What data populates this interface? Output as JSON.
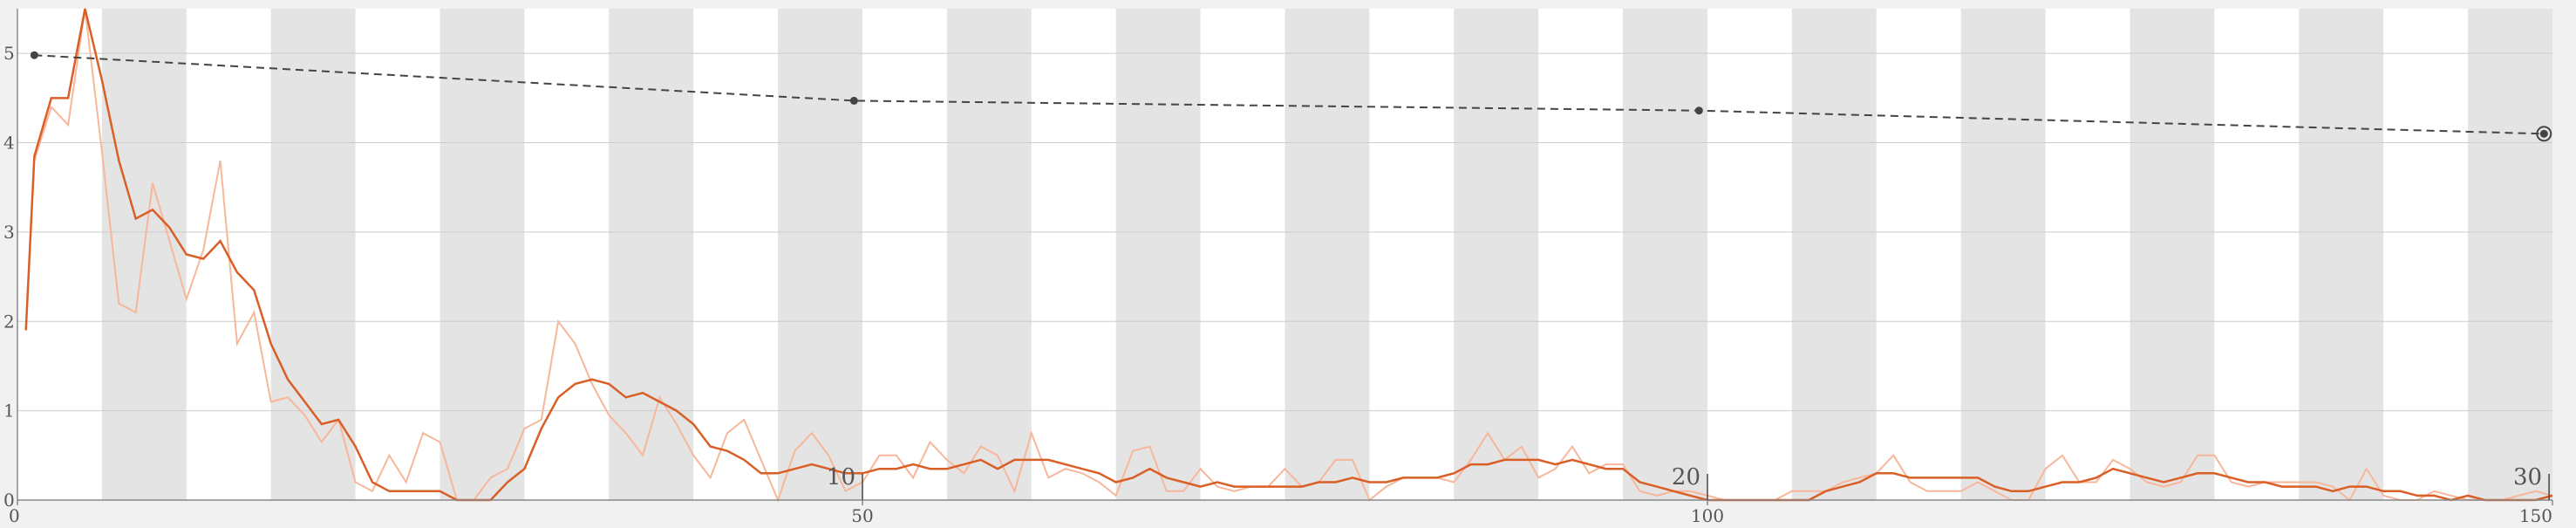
{
  "chart_data": {
    "type": "line",
    "title": "",
    "xlabel": "",
    "ylabel": "",
    "xlim": [
      0,
      150
    ],
    "ylim": [
      0,
      5.5
    ],
    "x_ticks": [
      "0",
      "50",
      "100",
      "150"
    ],
    "y_ticks": [
      "0",
      "1",
      "2",
      "3",
      "4",
      "5"
    ],
    "inner_x_labels": [
      {
        "label": "10",
        "at": 50
      },
      {
        "label": "20",
        "at": 100
      },
      {
        "label": "30",
        "at": 149.8
      }
    ],
    "band_width": 5,
    "grid": true,
    "colors": {
      "background": "#f1f1f1",
      "band_light": "#ffffff",
      "band_dark": "#e4e4e4",
      "smoothed": "#d95f27",
      "raw": "#f7b79b",
      "trend": "#444444",
      "axis": "#888888",
      "gridline": "#cccccc"
    },
    "series": [
      {
        "style": "raw",
        "x": [
          1,
          2,
          3,
          4,
          5,
          6,
          7,
          8,
          9,
          10,
          11,
          12,
          13,
          14,
          15,
          16,
          17,
          18,
          19,
          20,
          21,
          22,
          23,
          24,
          25,
          26,
          27,
          28,
          29,
          30,
          31,
          32,
          33,
          34,
          35,
          36,
          37,
          38,
          39,
          40,
          41,
          42,
          43,
          44,
          45,
          46,
          47,
          48,
          49,
          50,
          51,
          52,
          53,
          54,
          55,
          56,
          57,
          58,
          59,
          60,
          61,
          62,
          63,
          64,
          65,
          66,
          67,
          68,
          69,
          70,
          71,
          72,
          73,
          74,
          75,
          76,
          77,
          78,
          79,
          80,
          81,
          82,
          83,
          84,
          85,
          86,
          87,
          88,
          89,
          90,
          91,
          92,
          93,
          94,
          95,
          96,
          97,
          98,
          99,
          100,
          101,
          102,
          103,
          104,
          105,
          106,
          107,
          108,
          109,
          110,
          111,
          112,
          113,
          114,
          115,
          116,
          117,
          118,
          119,
          120,
          121,
          122,
          123,
          124,
          125,
          126,
          127,
          128,
          129,
          130,
          131,
          132,
          133,
          134,
          135,
          136,
          137,
          138,
          139,
          140,
          141,
          142,
          143,
          144,
          145,
          146,
          147,
          148,
          149,
          150
        ],
        "values": [
          3.8,
          4.4,
          4.2,
          5.5,
          3.9,
          2.2,
          2.1,
          3.55,
          2.9,
          2.25,
          2.8,
          3.8,
          1.75,
          2.1,
          1.1,
          1.15,
          0.95,
          0.65,
          0.9,
          0.2,
          0.1,
          0.5,
          0.2,
          0.75,
          0.65,
          0.0,
          0.0,
          0.25,
          0.35,
          0.8,
          0.9,
          2.0,
          1.75,
          1.3,
          0.95,
          0.75,
          0.5,
          1.15,
          0.85,
          0.5,
          0.25,
          0.75,
          0.9,
          0.45,
          0.0,
          0.55,
          0.75,
          0.5,
          0.1,
          0.2,
          0.5,
          0.5,
          0.25,
          0.65,
          0.45,
          0.3,
          0.6,
          0.5,
          0.1,
          0.75,
          0.25,
          0.35,
          0.3,
          0.2,
          0.05,
          0.55,
          0.6,
          0.1,
          0.1,
          0.35,
          0.15,
          0.1,
          0.15,
          0.15,
          0.35,
          0.15,
          0.2,
          0.45,
          0.45,
          0.0,
          0.15,
          0.25,
          0.25,
          0.25,
          0.2,
          0.45,
          0.75,
          0.45,
          0.6,
          0.25,
          0.35,
          0.6,
          0.3,
          0.4,
          0.4,
          0.1,
          0.05,
          0.1,
          0.1,
          0.05,
          0.0,
          0.0,
          0.0,
          0.0,
          0.1,
          0.1,
          0.1,
          0.2,
          0.25,
          0.3,
          0.5,
          0.2,
          0.1,
          0.1,
          0.1,
          0.2,
          0.1,
          0.0,
          0.0,
          0.35,
          0.5,
          0.2,
          0.2,
          0.45,
          0.35,
          0.2,
          0.15,
          0.2,
          0.5,
          0.5,
          0.2,
          0.15,
          0.2,
          0.2,
          0.2,
          0.2,
          0.15,
          0.0,
          0.35,
          0.05,
          0.0,
          0.0,
          0.1,
          0.05,
          0.0,
          0.0,
          0.0,
          0.05,
          0.1,
          0.05
        ]
      },
      {
        "style": "smoothed",
        "x": [
          0.5,
          1,
          2,
          3,
          4,
          5,
          6,
          7,
          8,
          9,
          10,
          11,
          12,
          13,
          14,
          15,
          16,
          17,
          18,
          19,
          20,
          21,
          22,
          23,
          24,
          25,
          26,
          27,
          28,
          29,
          30,
          31,
          32,
          33,
          34,
          35,
          36,
          37,
          38,
          39,
          40,
          41,
          42,
          43,
          44,
          45,
          46,
          47,
          48,
          49,
          50,
          51,
          52,
          53,
          54,
          55,
          56,
          57,
          58,
          59,
          60,
          61,
          62,
          63,
          64,
          65,
          66,
          67,
          68,
          69,
          70,
          71,
          72,
          73,
          74,
          75,
          76,
          77,
          78,
          79,
          80,
          81,
          82,
          83,
          84,
          85,
          86,
          87,
          88,
          89,
          90,
          91,
          92,
          93,
          94,
          95,
          96,
          97,
          98,
          99,
          100,
          101,
          102,
          103,
          104,
          105,
          106,
          107,
          108,
          109,
          110,
          111,
          112,
          113,
          114,
          115,
          116,
          117,
          118,
          119,
          120,
          121,
          122,
          123,
          124,
          125,
          126,
          127,
          128,
          129,
          130,
          131,
          132,
          133,
          134,
          135,
          136,
          137,
          138,
          139,
          140,
          141,
          142,
          143,
          144,
          145,
          146,
          147,
          148,
          149,
          150
        ],
        "values": [
          1.9,
          3.85,
          4.5,
          4.5,
          5.5,
          4.7,
          3.8,
          3.15,
          3.25,
          3.05,
          2.75,
          2.7,
          2.9,
          2.55,
          2.35,
          1.75,
          1.35,
          1.1,
          0.85,
          0.9,
          0.6,
          0.2,
          0.1,
          0.1,
          0.1,
          0.1,
          0.0,
          0.0,
          0.0,
          0.2,
          0.35,
          0.8,
          1.15,
          1.3,
          1.35,
          1.3,
          1.15,
          1.2,
          1.1,
          1.0,
          0.85,
          0.6,
          0.55,
          0.45,
          0.3,
          0.3,
          0.35,
          0.4,
          0.35,
          0.3,
          0.3,
          0.35,
          0.35,
          0.4,
          0.35,
          0.35,
          0.4,
          0.45,
          0.35,
          0.45,
          0.45,
          0.45,
          0.4,
          0.35,
          0.3,
          0.2,
          0.25,
          0.35,
          0.25,
          0.2,
          0.15,
          0.2,
          0.15,
          0.15,
          0.15,
          0.15,
          0.15,
          0.2,
          0.2,
          0.25,
          0.2,
          0.2,
          0.25,
          0.25,
          0.25,
          0.3,
          0.4,
          0.4,
          0.45,
          0.45,
          0.45,
          0.4,
          0.45,
          0.4,
          0.35,
          0.35,
          0.2,
          0.15,
          0.1,
          0.05,
          0.0,
          0.0,
          0.0,
          0.0,
          0.0,
          0.0,
          0.0,
          0.1,
          0.15,
          0.2,
          0.3,
          0.3,
          0.25,
          0.25,
          0.25,
          0.25,
          0.25,
          0.15,
          0.1,
          0.1,
          0.15,
          0.2,
          0.2,
          0.25,
          0.35,
          0.3,
          0.25,
          0.2,
          0.25,
          0.3,
          0.3,
          0.25,
          0.2,
          0.2,
          0.15,
          0.15,
          0.15,
          0.1,
          0.15,
          0.15,
          0.1,
          0.1,
          0.05,
          0.05,
          0.0,
          0.05,
          0.0,
          0.0,
          0.0,
          0.0,
          0.05
        ]
      },
      {
        "style": "trend",
        "x": [
          1,
          49.5,
          99.5,
          149.5
        ],
        "values": [
          4.98,
          4.47,
          4.36,
          4.1
        ]
      }
    ]
  }
}
